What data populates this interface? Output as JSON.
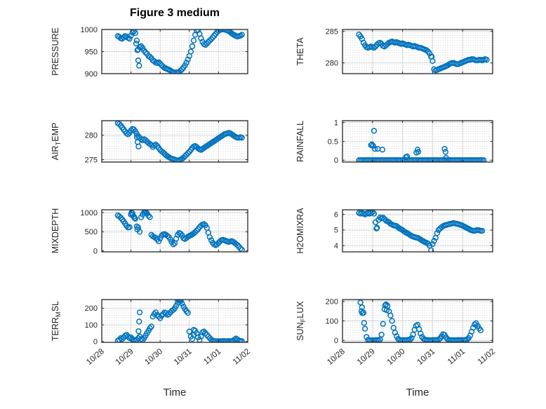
{
  "figure": {
    "title": "Figure 3 medium",
    "xlabel": "Time"
  },
  "style": {
    "marker_color": "#0072BD",
    "axis_color": "#262626",
    "text_color": "#262626",
    "title_color": "#000000",
    "major_grid_color": "#d9d9d9",
    "minor_grid_color": "#c9c9c9",
    "background_color": "#ffffff"
  },
  "x_axis": {
    "xlim": [
      0,
      5
    ],
    "ticks": [
      0,
      1,
      2,
      3,
      4,
      5
    ],
    "tick_labels": [
      "10/28",
      "10/29",
      "10/30",
      "10/31",
      "11/01",
      "11/02"
    ],
    "gridline_days": [
      1,
      2,
      3,
      4
    ],
    "label": "Time"
  },
  "chart_data": [
    {
      "id": "pressure",
      "type": "scatter",
      "row": 0,
      "col": 0,
      "title": "Figure 3 medium",
      "ylabel": {
        "pre": "PRESSURE",
        "sub": "",
        "post": ""
      },
      "yticks": [
        900,
        950,
        1000
      ],
      "ylim": [
        900,
        1000
      ],
      "series": {
        "t0": 0.55,
        "dt": 0.05,
        "values": [
          985,
          983,
          980,
          979,
          982,
          985,
          984,
          981,
          979,
          986,
          993,
          996,
          992,
          975,
          955,
          960,
          962,
          958,
          952,
          948,
          945,
          940,
          938,
          935,
          930,
          928,
          925,
          924,
          926,
          923,
          919,
          916,
          913,
          912,
          910,
          909,
          907,
          905,
          903,
          902,
          903,
          902,
          904,
          907,
          910,
          914,
          919,
          925,
          932,
          940,
          950,
          962,
          975,
          988,
          997,
          999,
          990,
          980,
          972,
          967,
          965,
          968,
          972,
          975,
          978,
          982,
          986,
          990,
          994,
          997,
          999,
          1000,
          1000,
          1000,
          999,
          998,
          996,
          994,
          991,
          989,
          987,
          985,
          984,
          985,
          986,
          988
        ]
      },
      "extra_points": [
        [
          1.18,
          968
        ],
        [
          1.22,
          953
        ],
        [
          1.25,
          930
        ],
        [
          1.28,
          918
        ]
      ]
    },
    {
      "id": "theta",
      "type": "scatter",
      "row": 0,
      "col": 1,
      "ylabel": {
        "pre": "THETA",
        "sub": "",
        "post": ""
      },
      "yticks": [
        280,
        285
      ],
      "ylim": [
        278.3,
        285.3
      ],
      "series": {
        "t0": 0.55,
        "dt": 0.05,
        "values": [
          284.5,
          284.2,
          283.8,
          283.2,
          282.8,
          282.5,
          282.4,
          282.5,
          282.6,
          282.5,
          282.4,
          282.6,
          282.9,
          283.1,
          283.2,
          283.0,
          282.7,
          282.6,
          282.8,
          283.0,
          283.2,
          283.3,
          283.4,
          283.3,
          283.2,
          283.3,
          283.2,
          283.1,
          283.0,
          283.1,
          283.0,
          282.9,
          282.8,
          282.9,
          282.8,
          282.7,
          282.6,
          282.7,
          282.6,
          282.5,
          282.4,
          282.4,
          282.3,
          282.2,
          282.1,
          282.0,
          281.8,
          281.5,
          281.0,
          280.3,
          279.0,
          278.8,
          278.9,
          279.0,
          279.1,
          279.2,
          279.3,
          279.4,
          279.5,
          279.6,
          279.8,
          279.9,
          280.0,
          280.0,
          279.9,
          279.8,
          279.8,
          279.9,
          280.0,
          280.1,
          280.2,
          280.3,
          280.4,
          280.5,
          280.5,
          280.6,
          280.6,
          280.5,
          280.4,
          280.4,
          280.5,
          280.5,
          280.4,
          280.5,
          280.6,
          280.5
        ]
      },
      "extra_points": [
        [
          2.97,
          281.0
        ]
      ]
    },
    {
      "id": "air-temp",
      "type": "scatter",
      "row": 1,
      "col": 0,
      "ylabel": {
        "pre": "AIR",
        "sub": "T",
        "post": "EMP"
      },
      "yticks": [
        275,
        280
      ],
      "ylim": [
        274.5,
        283
      ],
      "series": {
        "t0": 0.55,
        "dt": 0.05,
        "values": [
          282.5,
          282.3,
          282.0,
          281.6,
          281.2,
          280.8,
          280.4,
          280.2,
          280.5,
          281.0,
          281.3,
          281.2,
          280.8,
          280.3,
          279.8,
          279.5,
          279.2,
          279.0,
          279.2,
          279.0,
          278.7,
          278.4,
          278.2,
          278.0,
          277.6,
          277.9,
          278.1,
          277.8,
          277.4,
          277.0,
          276.7,
          276.5,
          276.2,
          275.9,
          275.7,
          275.5,
          275.3,
          275.2,
          275.1,
          275.0,
          274.9,
          274.8,
          274.9,
          275.0,
          275.2,
          275.4,
          275.7,
          276.0,
          276.3,
          276.6,
          277.0,
          277.4,
          277.7,
          277.8,
          277.6,
          277.3,
          277.1,
          277.0,
          277.2,
          277.4,
          277.6,
          277.8,
          278.0,
          278.2,
          278.4,
          278.6,
          278.8,
          279.0,
          279.2,
          279.4,
          279.6,
          279.8,
          280.0,
          280.2,
          280.3,
          280.4,
          280.5,
          280.4,
          280.2,
          280.0,
          279.8,
          279.6,
          279.5,
          279.5,
          279.6,
          279.5
        ]
      },
      "extra_points": [
        [
          1.2,
          279.6
        ],
        [
          1.23,
          278.6
        ],
        [
          1.26,
          277.7
        ]
      ]
    },
    {
      "id": "rainfall",
      "type": "scatter",
      "row": 1,
      "col": 1,
      "ylabel": {
        "pre": "RAINFALL",
        "sub": "",
        "post": ""
      },
      "yticks": [
        0,
        0.5,
        1
      ],
      "ylim": [
        -0.05,
        1.05
      ],
      "series": {
        "t0": 0.55,
        "dt": 0.05,
        "values": [
          0,
          0,
          0,
          0,
          0,
          0,
          0,
          0,
          0,
          0,
          0,
          0,
          0,
          0,
          0,
          0,
          0,
          0,
          0,
          0,
          0,
          0,
          0,
          0,
          0,
          0,
          0,
          0,
          0,
          0,
          0,
          0,
          0,
          0,
          0,
          0,
          0,
          0,
          0,
          0,
          0,
          0,
          0,
          0,
          0,
          0,
          0,
          0,
          0,
          0,
          0,
          0,
          0,
          0,
          0,
          0,
          0,
          0,
          0,
          0,
          0,
          0,
          0,
          0,
          0,
          0,
          0,
          0,
          0,
          0,
          0,
          0,
          0,
          0,
          0,
          0,
          0,
          0,
          0,
          0,
          0,
          0,
          0,
          0
        ]
      },
      "extra_points": [
        [
          0.95,
          0.4
        ],
        [
          0.98,
          0.42
        ],
        [
          1.02,
          0.38
        ],
        [
          1.05,
          0.78
        ],
        [
          1.08,
          0.3
        ],
        [
          1.17,
          0.3
        ],
        [
          1.33,
          0.28
        ],
        [
          2.11,
          0.08
        ],
        [
          2.15,
          0.1
        ],
        [
          2.46,
          0.2
        ],
        [
          2.5,
          0.28
        ],
        [
          2.52,
          0.22
        ],
        [
          3.4,
          0.3
        ],
        [
          3.43,
          0.22
        ],
        [
          3.45,
          0.06
        ]
      ]
    },
    {
      "id": "mixdepth",
      "type": "scatter",
      "row": 2,
      "col": 0,
      "ylabel": {
        "pre": "MIXDEPTH",
        "sub": "",
        "post": ""
      },
      "yticks": [
        0,
        500,
        1000
      ],
      "ylim": [
        -25,
        1075
      ],
      "series": {
        "t0": 0.55,
        "dt": 0.05,
        "values": [
          930,
          900,
          865,
          825,
          775,
          715,
          655,
          610,
          620,
          950,
          985,
          900,
          840,
          640,
          610,
          500,
          880,
          950,
          1010,
          1030,
          980,
          920,
          880,
          420,
          380,
          360,
          340,
          300,
          250,
          330,
          400,
          430,
          440,
          420,
          390,
          360,
          300,
          230,
          170,
          200,
          320,
          420,
          470,
          450,
          400,
          330,
          310,
          340,
          370,
          390,
          410,
          430,
          460,
          490,
          530,
          570,
          620,
          660,
          690,
          700,
          670,
          600,
          480,
          360,
          280,
          210,
          170,
          150,
          170,
          210,
          250,
          280,
          290,
          280,
          260,
          245,
          235,
          245,
          255,
          240,
          210,
          180,
          150,
          110,
          60,
          30
        ]
      },
      "extra_points": [
        [
          1.02,
          1000
        ],
        [
          1.05,
          940
        ],
        [
          1.12,
          860
        ],
        [
          1.22,
          560
        ],
        [
          1.47,
          1040
        ],
        [
          1.52,
          1000
        ]
      ]
    },
    {
      "id": "h2omixra",
      "type": "scatter",
      "row": 2,
      "col": 1,
      "ylabel": {
        "pre": "H2OMIXRA",
        "sub": "",
        "post": ""
      },
      "yticks": [
        4,
        5,
        6
      ],
      "ylim": [
        3.6,
        6.3
      ],
      "series": {
        "t0": 0.55,
        "dt": 0.05,
        "values": [
          6.1,
          6.05,
          6.1,
          6.05,
          6.0,
          6.05,
          6.1,
          6.05,
          6.1,
          6.15,
          6.05,
          5.5,
          5.15,
          5.65,
          5.8,
          5.75,
          5.8,
          5.7,
          5.6,
          5.55,
          5.5,
          5.4,
          5.35,
          5.3,
          5.28,
          5.25,
          5.18,
          5.1,
          5.05,
          5.0,
          4.92,
          4.85,
          4.8,
          4.75,
          4.68,
          4.62,
          4.58,
          4.55,
          4.52,
          4.5,
          4.45,
          4.4,
          4.32,
          4.28,
          4.22,
          4.18,
          4.12,
          4.0,
          3.7,
          4.1,
          4.3,
          4.5,
          4.8,
          5.0,
          5.1,
          5.18,
          5.25,
          5.3,
          5.32,
          5.35,
          5.38,
          5.4,
          5.42,
          5.45,
          5.42,
          5.4,
          5.38,
          5.35,
          5.32,
          5.28,
          5.22,
          5.18,
          5.12,
          5.08,
          5.02,
          4.98,
          4.95,
          4.95,
          4.98,
          5.0,
          4.98,
          4.95,
          4.95
        ]
      },
      "extra_points": [
        [
          1.13,
          5.1
        ]
      ]
    },
    {
      "id": "terr-msl",
      "type": "scatter",
      "row": 3,
      "col": 0,
      "ylabel": {
        "pre": "TERR",
        "sub": "M",
        "post": "SL"
      },
      "yticks": [
        0,
        100,
        200
      ],
      "ylim": [
        -5,
        252
      ],
      "series": {
        "t0": 0.55,
        "dt": 0.05,
        "values": [
          5,
          10,
          20,
          15,
          25,
          35,
          40,
          30,
          20,
          25,
          15,
          10,
          5,
          10,
          20,
          30,
          15,
          10,
          20,
          35,
          50,
          65,
          80,
          90,
          150,
          165,
          175,
          160,
          150,
          140,
          155,
          165,
          175,
          170,
          160,
          165,
          175,
          185,
          190,
          200,
          215,
          232,
          246,
          242,
          228,
          210,
          195,
          182,
          172,
          60,
          30,
          15,
          40,
          65,
          50,
          25,
          10,
          30,
          55,
          60,
          50,
          40,
          30,
          20,
          12,
          6,
          3,
          2,
          2,
          2,
          2,
          2,
          3,
          3,
          2,
          2,
          3,
          2,
          2,
          5,
          12,
          18,
          12,
          5,
          3,
          2
        ]
      },
      "extra_points": [
        [
          1.26,
          62
        ],
        [
          1.28,
          120
        ],
        [
          1.3,
          175
        ],
        [
          2.6,
          250
        ],
        [
          2.65,
          252
        ],
        [
          2.7,
          248
        ],
        [
          3.15,
          70
        ]
      ]
    },
    {
      "id": "sun-flux",
      "type": "scatter",
      "row": 3,
      "col": 1,
      "ylabel": {
        "pre": "SUN",
        "sub": "F",
        "post": "LUX"
      },
      "yticks": [
        0,
        100,
        200
      ],
      "ylim": [
        -10,
        210
      ],
      "series": {
        "t0": 0.6,
        "dt": 0.05,
        "values": [
          195,
          170,
          142,
          60,
          18,
          3,
          1,
          0,
          1,
          0,
          1,
          2,
          1,
          5,
          30,
          85,
          160,
          185,
          178,
          150,
          128,
          100,
          65,
          40,
          22,
          8,
          3,
          1,
          1,
          2,
          1,
          2,
          3,
          5,
          12,
          30,
          55,
          75,
          80,
          58,
          35,
          18,
          8,
          4,
          2,
          1,
          1,
          1,
          2,
          2,
          1,
          2,
          4,
          10,
          22,
          32,
          28,
          15,
          6,
          2,
          1,
          1,
          1,
          1,
          1,
          2,
          1,
          2,
          1,
          2,
          3,
          5,
          12,
          25,
          45,
          65,
          82,
          88,
          75,
          62,
          52
        ]
      },
      "extra_points": [
        [
          0.63,
          150
        ],
        [
          0.66,
          140
        ],
        [
          0.72,
          90
        ],
        [
          1.42,
          180
        ],
        [
          1.47,
          155
        ]
      ]
    }
  ]
}
